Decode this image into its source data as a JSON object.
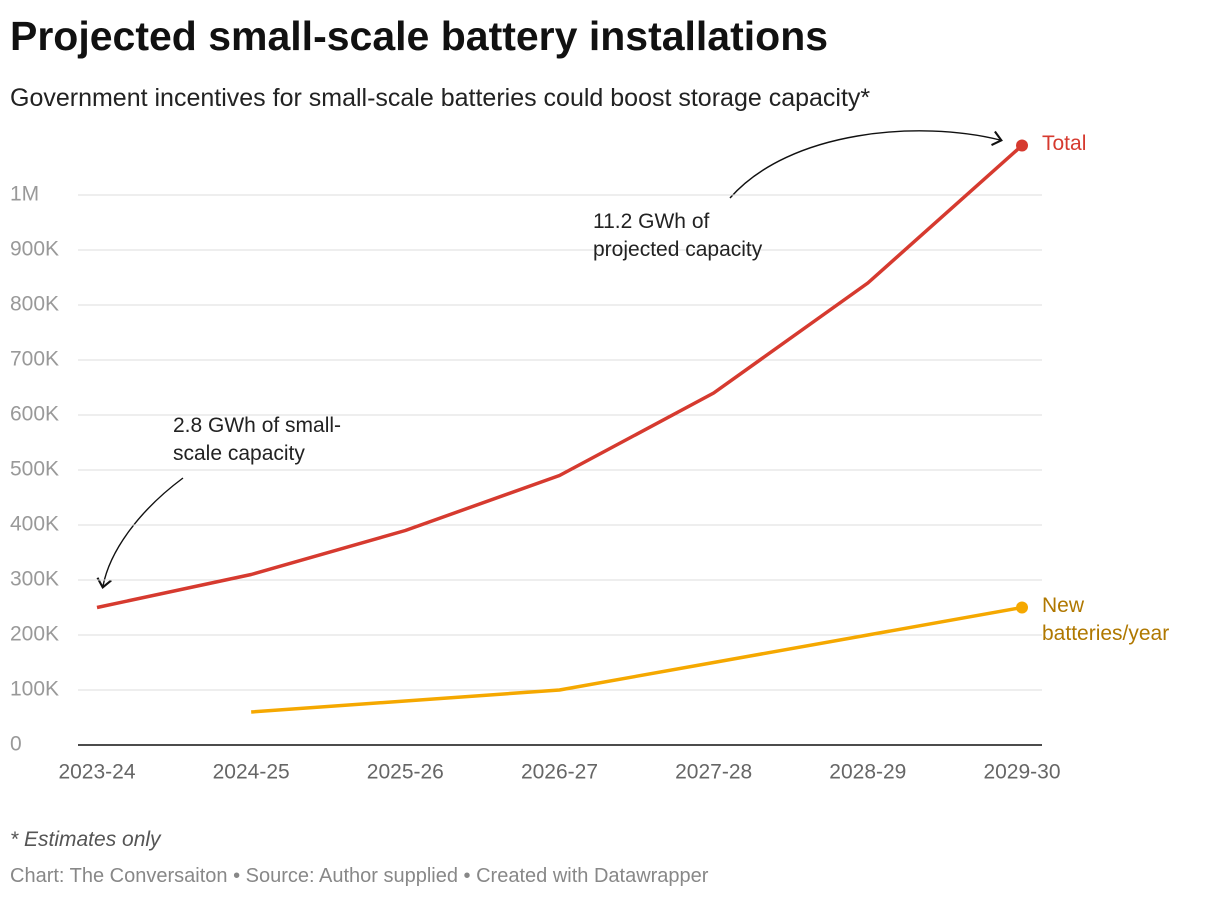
{
  "chart_data": {
    "type": "line",
    "title": "Projected small-scale battery installations",
    "subtitle": "Government incentives for small-scale batteries could boost storage capacity*",
    "categories": [
      "2023-24",
      "2024-25",
      "2025-26",
      "2026-27",
      "2027-28",
      "2028-29",
      "2029-30"
    ],
    "series": [
      {
        "name": "Total",
        "color": "#d63a2f",
        "values": [
          250000,
          310000,
          390000,
          490000,
          640000,
          840000,
          1090000
        ]
      },
      {
        "name": "New batteries/year",
        "color": "#f5a800",
        "label_color": "#b07800",
        "values": [
          null,
          60000,
          80000,
          100000,
          150000,
          200000,
          250000
        ]
      }
    ],
    "ylim": [
      0,
      1100000
    ],
    "yticks": [
      0,
      {
        "value": 100000,
        "label": "100K"
      },
      {
        "value": 200000,
        "label": "200K"
      },
      {
        "value": 300000,
        "label": "300K"
      },
      {
        "value": 400000,
        "label": "400K"
      },
      {
        "value": 500000,
        "label": "500K"
      },
      {
        "value": 600000,
        "label": "600K"
      },
      {
        "value": 700000,
        "label": "700K"
      },
      {
        "value": 800000,
        "label": "800K"
      },
      {
        "value": 900000,
        "label": "900K"
      },
      {
        "value": 1000000,
        "label": "1M"
      }
    ],
    "grid": true,
    "annotations": [
      "2.8 GWh of small-scale capacity",
      "11.2 GWh of projected capacity"
    ],
    "footnote": "* Estimates only",
    "credits": "Chart: The Conversaiton • Source: Author supplied • Created with Datawrapper"
  }
}
